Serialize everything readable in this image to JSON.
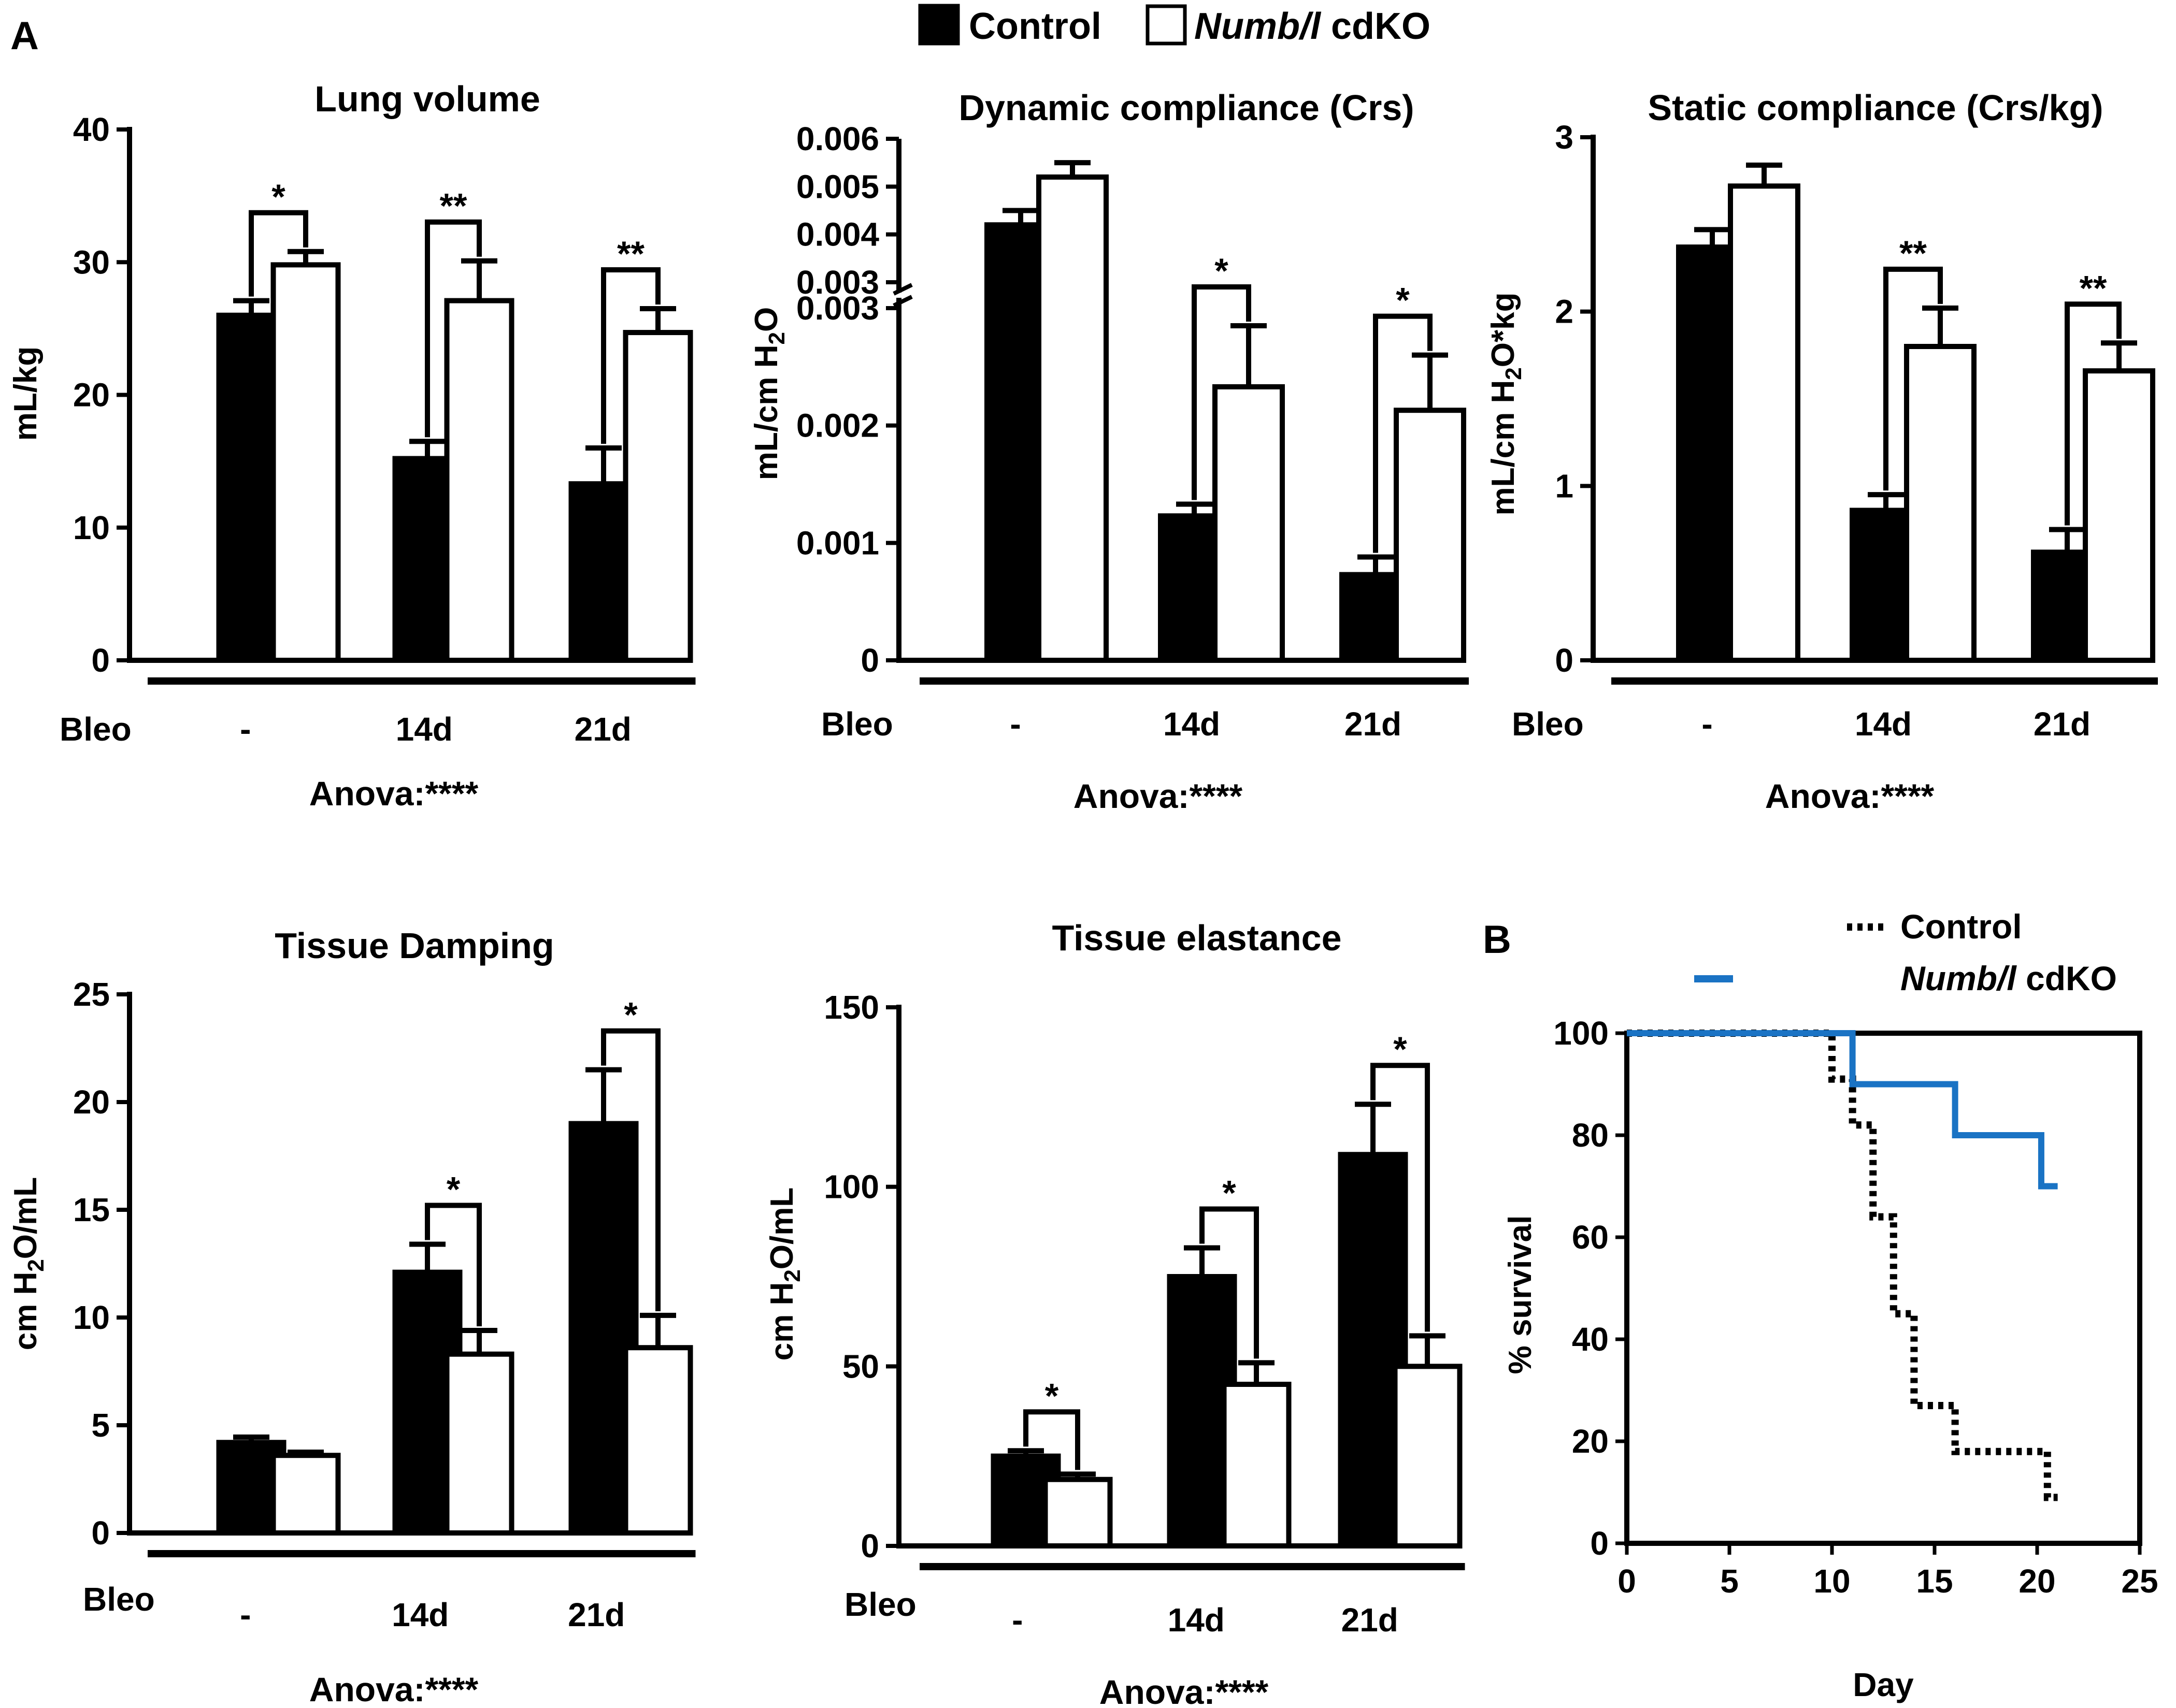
{
  "legend": {
    "control": "Control",
    "cdko_gene": "Numb/l",
    "cdko_suffix": " cdKO"
  },
  "panel_labels": {
    "a": "A",
    "b": "B"
  },
  "colors": {
    "control": "#000000",
    "cdko": "#ffffff",
    "survival_control": "#000000",
    "survival_cdko": "#1a73c4"
  },
  "chart_data": [
    {
      "id": "lung-volume",
      "type": "bar",
      "title": "Lung volume",
      "ylabel": "mL/kg",
      "ylim": [
        0,
        40
      ],
      "yticks": [
        "0",
        "10",
        "20",
        "30",
        "40"
      ],
      "row_label": "Bleo",
      "categories": [
        "-",
        "14d",
        "21d"
      ],
      "series": [
        {
          "name": "Control",
          "values": [
            26,
            15.2,
            13.3
          ],
          "errors": [
            1.1,
            1.3,
            2.7
          ]
        },
        {
          "name": "Numb/l cdKO",
          "values": [
            29.8,
            27.1,
            24.7
          ],
          "errors": [
            1.0,
            3.0,
            1.8
          ]
        }
      ],
      "significance": [
        "*",
        "**",
        "**"
      ],
      "anova": "Anova:****"
    },
    {
      "id": "dynamic-compliance",
      "type": "bar",
      "title": "Dynamic compliance (Crs)",
      "ylabel": "mL/cm H2O",
      "axis_break": true,
      "yticks": [
        "0",
        "0.001",
        "0.002",
        "0.003",
        "0.003",
        "0.004",
        "0.005",
        "0.006"
      ],
      "row_label": "Bleo",
      "categories": [
        "-",
        "14d",
        "21d"
      ],
      "series": [
        {
          "name": "Control",
          "values": [
            0.0042,
            0.00123,
            0.00073
          ],
          "errors": [
            0.0003,
            0.0001,
            0.00015
          ]
        },
        {
          "name": "Numb/l cdKO",
          "values": [
            0.0052,
            0.00233,
            0.00213
          ],
          "errors": [
            0.0003,
            0.00052,
            0.00047
          ]
        }
      ],
      "significance": [
        "",
        "*",
        "*"
      ],
      "anova": "Anova:****"
    },
    {
      "id": "static-compliance",
      "type": "bar",
      "title": "Static compliance (Crs/kg)",
      "ylabel": "mL/cm H2O*kg",
      "ylim": [
        0,
        3
      ],
      "yticks": [
        "0",
        "1",
        "2",
        "3"
      ],
      "row_label": "Bleo",
      "categories": [
        "-",
        "14d",
        "21d"
      ],
      "series": [
        {
          "name": "Control",
          "values": [
            2.37,
            0.86,
            0.62
          ],
          "errors": [
            0.1,
            0.09,
            0.13
          ]
        },
        {
          "name": "Numb/l cdKO",
          "values": [
            2.72,
            1.8,
            1.66
          ],
          "errors": [
            0.12,
            0.22,
            0.16
          ]
        }
      ],
      "significance": [
        "",
        "**",
        "**"
      ],
      "anova": "Anova:****"
    },
    {
      "id": "tissue-damping",
      "type": "bar",
      "title": "Tissue Damping",
      "ylabel": "cm H2O/mL",
      "ylim": [
        0,
        25
      ],
      "yticks": [
        "0",
        "5",
        "10",
        "15",
        "20",
        "25"
      ],
      "row_label": "Bleo",
      "categories": [
        "-",
        "14d",
        "21d"
      ],
      "series": [
        {
          "name": "Control",
          "values": [
            4.2,
            12.1,
            19
          ],
          "errors": [
            0.25,
            1.3,
            2.5
          ]
        },
        {
          "name": "Numb/l cdKO",
          "values": [
            3.6,
            8.3,
            8.6
          ],
          "errors": [
            0.15,
            1.1,
            1.5
          ]
        }
      ],
      "significance": [
        "",
        "*",
        "*"
      ],
      "anova": "Anova:****"
    },
    {
      "id": "tissue-elastance",
      "type": "bar",
      "title": "Tissue elastance",
      "ylabel": "cm H2O/mL",
      "ylim": [
        0,
        150
      ],
      "yticks": [
        "0",
        "50",
        "100",
        "150"
      ],
      "row_label": "Bleo",
      "categories": [
        "-",
        "14d",
        "21d"
      ],
      "series": [
        {
          "name": "Control",
          "values": [
            25,
            75,
            109
          ],
          "errors": [
            1.5,
            8,
            14
          ]
        },
        {
          "name": "Numb/l cdKO",
          "values": [
            18.5,
            45,
            50
          ],
          "errors": [
            1.5,
            6,
            8.5
          ]
        }
      ],
      "significance": [
        "*",
        "*",
        "*"
      ],
      "anova": "Anova:****"
    },
    {
      "id": "survival",
      "type": "line",
      "xlabel": "Day",
      "ylabel": "% survival",
      "xlim": [
        0,
        25
      ],
      "ylim": [
        0,
        100
      ],
      "xticks": [
        "0",
        "5",
        "10",
        "15",
        "20",
        "25"
      ],
      "yticks": [
        "0",
        "20",
        "40",
        "60",
        "80",
        "100"
      ],
      "series": [
        {
          "name": "Control",
          "style": "dotted",
          "x": [
            0,
            10,
            10,
            11,
            11,
            12,
            12,
            13,
            13,
            14,
            14,
            16,
            16,
            20.5,
            20.5,
            21
          ],
          "y": [
            100,
            100,
            91,
            91,
            82,
            82,
            64,
            64,
            45,
            45,
            27,
            27,
            18,
            18,
            9,
            9
          ]
        },
        {
          "name": "Numb/l cdKO",
          "style": "solid",
          "x": [
            0,
            11,
            11,
            16,
            16,
            20.2,
            20.2,
            21
          ],
          "y": [
            100,
            100,
            90,
            90,
            80,
            80,
            70,
            70
          ]
        }
      ]
    }
  ]
}
